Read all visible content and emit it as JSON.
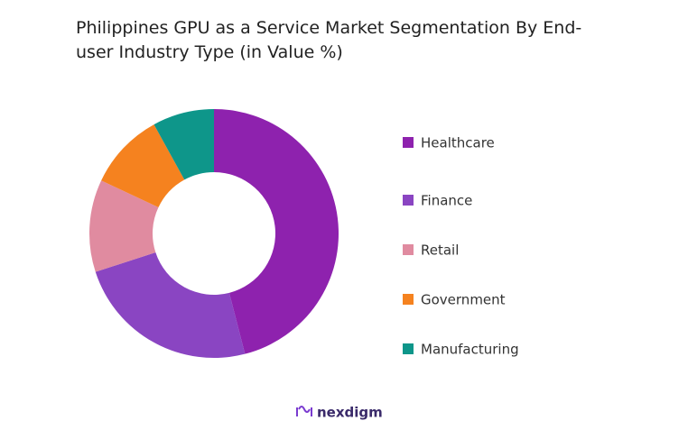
{
  "chart_data": {
    "type": "donut",
    "title": "Philippines GPU as a Service Market Segmentation By End-user Industry Type (in Value %)",
    "categories": [
      "Healthcare",
      "Finance",
      "Retail",
      "Government",
      "Manufacturing"
    ],
    "values": [
      46,
      24,
      12,
      10,
      8
    ],
    "colors": [
      "#8e22ae",
      "#8a45c2",
      "#e08ba0",
      "#f5821f",
      "#0e968a"
    ],
    "legend": "right",
    "logo": "nexdigm"
  }
}
